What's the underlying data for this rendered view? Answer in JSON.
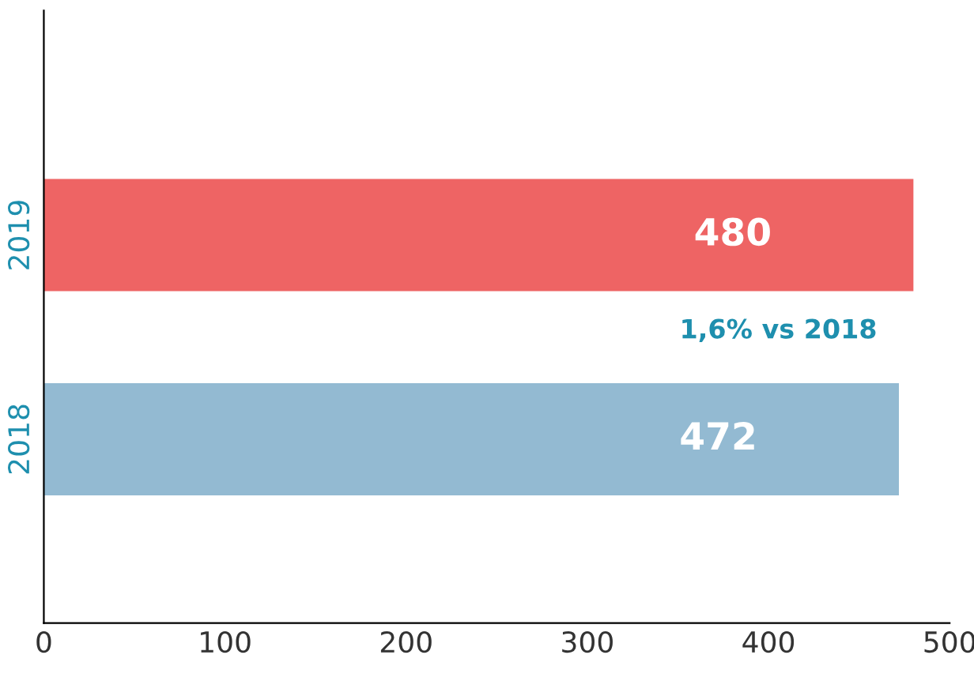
{
  "chart_data": {
    "type": "bar",
    "orientation": "horizontal",
    "categories": [
      "2019",
      "2018"
    ],
    "values": [
      480,
      472
    ],
    "colors": [
      "#ee6464",
      "#93bad2"
    ],
    "xlim": [
      0,
      500
    ],
    "xticks": [
      0,
      100,
      200,
      300,
      400,
      500
    ],
    "data_labels": true,
    "grid": false,
    "legend": false,
    "annotations": [
      "1,6% vs 2018"
    ]
  }
}
